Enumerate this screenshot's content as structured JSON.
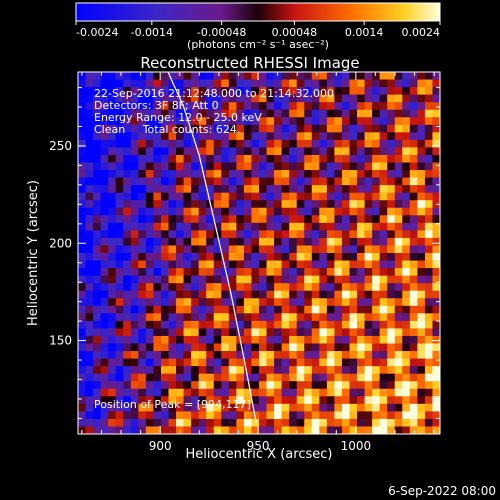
{
  "chart_data": {
    "type": "heatmap",
    "title": "Reconstructed RHESSI Image",
    "xlabel": "Heliocentric X (arcsec)",
    "ylabel": "Heliocentric Y (arcsec)",
    "xlim": [
      858,
      1043
    ],
    "ylim": [
      102,
      288
    ],
    "x_ticks": [
      900,
      950,
      1000
    ],
    "y_ticks": [
      150,
      200,
      250
    ],
    "colorbar": {
      "ticks": [
        "-0.0024",
        "-0.0014",
        "-0.00048",
        "0.00048",
        "0.0014",
        "0.0024"
      ],
      "tick_values": [
        -0.0024,
        -0.0014,
        -0.00048,
        0.00048,
        0.0014,
        0.0024
      ],
      "units_line": "(photons cm⁻² s⁻¹ asec⁻²)",
      "range": [
        -0.0024,
        0.0024
      ]
    },
    "annotations": [
      "22-Sep-2016 21:12:48.000 to 21:14:32.000",
      "Detectors: 3F 8F; Att 0",
      "Energy Range: 12.0 - 25.0 keV",
      "Clean     Total counts: 624."
    ],
    "peak_label": "Position of Peak = [994,117]",
    "peak": [
      994,
      117
    ],
    "limb_curve": [
      [
        904,
        288
      ],
      [
        912,
        270
      ],
      [
        920,
        245
      ],
      [
        928,
        210
      ],
      [
        936,
        175
      ],
      [
        943,
        140
      ],
      [
        949,
        108
      ]
    ],
    "footer_date": "6-Sep-2022 08:00"
  }
}
